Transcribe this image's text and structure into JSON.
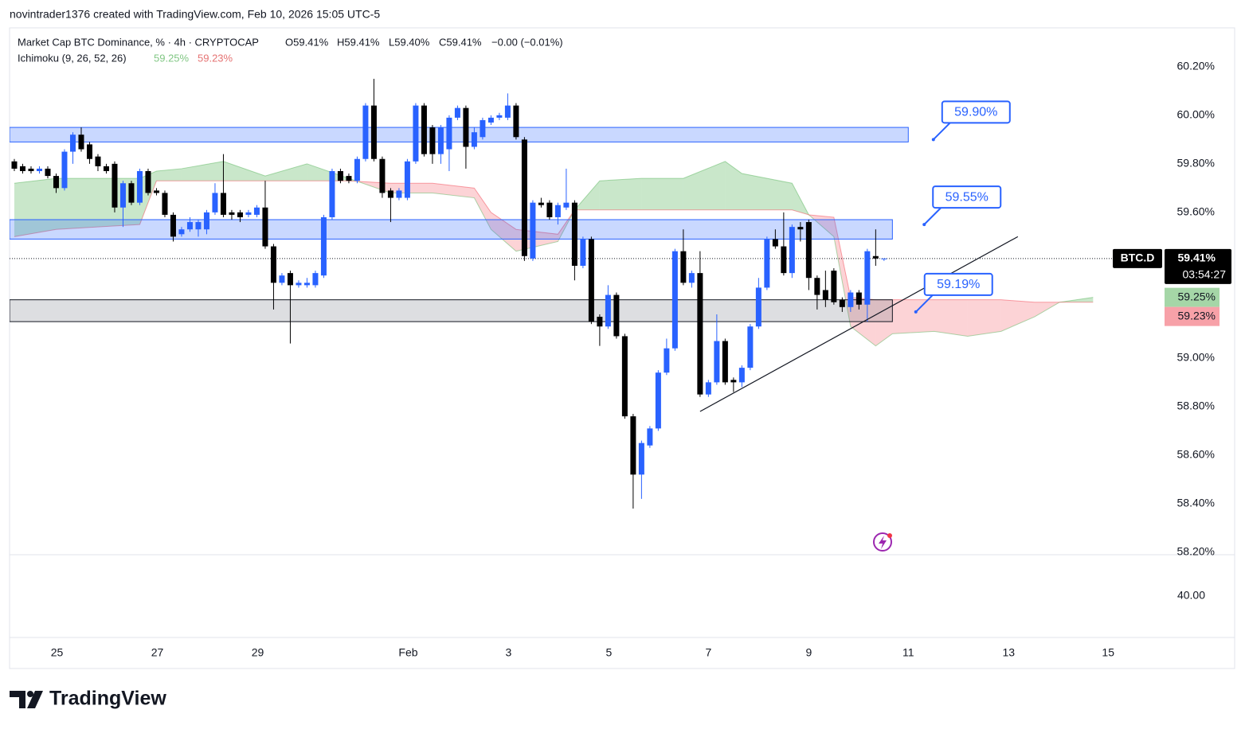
{
  "header": {
    "attribution": "novintrader1376 created with TradingView.com, Feb 10, 2026 15:05 UTC-5",
    "legend": {
      "symbol": "Market Cap BTC Dominance, % · 4h · CRYPTOCAP",
      "open": "O59.41%",
      "high": "H59.41%",
      "low": "L59.40%",
      "close": "C59.41%",
      "change": "−0.00 (−0.01%)"
    }
  },
  "chart_data": {
    "type": "candlestick",
    "up_color": "#2962ff",
    "down_color": "#000000",
    "grid": false,
    "categories": [
      null,
      null,
      null,
      null,
      null,
      null,
      null,
      null,
      null,
      null,
      null,
      null,
      null,
      null,
      null,
      null,
      null,
      null,
      null,
      null,
      null,
      null,
      null,
      null,
      null,
      null,
      null,
      null,
      null,
      null,
      null,
      null,
      null,
      null,
      null,
      null,
      null,
      null,
      null,
      null,
      null,
      null,
      null,
      null,
      null,
      null,
      null,
      null,
      null,
      null,
      null,
      null,
      null,
      null,
      null,
      null,
      null,
      null,
      null,
      null,
      null,
      null,
      null,
      null,
      null,
      null,
      null,
      null,
      null,
      null,
      null,
      null,
      null,
      null,
      null,
      null,
      null,
      null,
      null,
      null,
      null,
      null,
      null,
      null,
      null,
      null,
      null,
      null,
      null,
      null,
      null,
      null,
      null,
      null,
      null,
      null,
      null,
      null,
      null,
      null,
      null,
      null,
      null,
      null,
      null
    ],
    "open": [
      59.81,
      59.79,
      59.78,
      59.77,
      59.78,
      59.75,
      59.7,
      59.85,
      59.92,
      59.88,
      59.83,
      59.79,
      59.8,
      59.62,
      59.72,
      59.64,
      59.77,
      59.69,
      59.68,
      59.59,
      59.51,
      59.53,
      59.53,
      59.53,
      59.6,
      59.68,
      59.6,
      59.6,
      59.59,
      59.59,
      59.62,
      59.46,
      59.31,
      59.35,
      59.3,
      59.3,
      59.3,
      59.34,
      59.58,
      59.77,
      59.75,
      59.73,
      59.82,
      60.04,
      59.82,
      59.69,
      59.66,
      59.66,
      59.81,
      60.04,
      59.95,
      59.84,
      59.86,
      59.99,
      60.03,
      59.87,
      59.91,
      59.97,
      59.99,
      59.99,
      60.04,
      59.9,
      59.41,
      59.64,
      59.64,
      59.58,
      59.62,
      59.64,
      59.38,
      59.49,
      59.17,
      59.13,
      59.26,
      59.09,
      58.76,
      58.52,
      58.64,
      58.71,
      58.94,
      59.04,
      59.44,
      59.31,
      59.35,
      58.85,
      58.9,
      59.07,
      58.91,
      58.9,
      58.96,
      59.13,
      59.29,
      59.49,
      59.46,
      59.35,
      59.54,
      59.56,
      59.33,
      59.28,
      59.36,
      59.24,
      59.21,
      59.27,
      59.22,
      59.42,
      59.41
    ],
    "high": [
      59.82,
      59.8,
      59.79,
      59.79,
      59.79,
      59.76,
      59.86,
      59.93,
      59.95,
      59.89,
      59.84,
      59.8,
      59.81,
      59.73,
      59.73,
      59.78,
      59.78,
      59.7,
      59.69,
      59.6,
      59.54,
      59.58,
      59.57,
      59.61,
      59.72,
      59.84,
      59.61,
      59.61,
      59.61,
      59.63,
      59.73,
      59.47,
      59.35,
      59.36,
      59.32,
      59.33,
      59.36,
      59.59,
      59.78,
      59.78,
      59.76,
      59.83,
      60.05,
      60.15,
      59.83,
      59.7,
      59.7,
      59.82,
      60.05,
      60.05,
      59.96,
      59.96,
      60.0,
      60.04,
      60.04,
      59.95,
      59.99,
      60.0,
      60.01,
      60.09,
      60.05,
      59.91,
      59.65,
      59.66,
      59.65,
      59.64,
      59.78,
      59.65,
      59.5,
      59.5,
      59.18,
      59.3,
      59.27,
      59.1,
      58.77,
      58.66,
      58.72,
      58.95,
      59.08,
      59.45,
      59.53,
      59.36,
      59.44,
      58.91,
      59.18,
      59.08,
      58.92,
      58.97,
      59.14,
      59.33,
      59.5,
      59.53,
      59.6,
      59.55,
      59.56,
      59.57,
      59.34,
      59.36,
      59.37,
      59.25,
      59.28,
      59.28,
      59.45,
      59.53,
      59.41
    ],
    "low": [
      59.77,
      59.76,
      59.76,
      59.76,
      59.74,
      59.68,
      59.69,
      59.8,
      59.85,
      59.8,
      59.77,
      59.76,
      59.6,
      59.54,
      59.63,
      59.63,
      59.67,
      59.67,
      59.58,
      59.48,
      59.5,
      59.52,
      59.5,
      59.51,
      59.59,
      59.58,
      59.57,
      59.56,
      59.58,
      59.58,
      59.45,
      59.2,
      59.3,
      59.06,
      59.29,
      59.29,
      59.29,
      59.33,
      59.57,
      59.72,
      59.72,
      59.72,
      59.81,
      59.81,
      59.66,
      59.56,
      59.65,
      59.65,
      59.8,
      59.83,
      59.8,
      59.8,
      59.77,
      59.98,
      59.78,
      59.86,
      59.9,
      59.96,
      59.98,
      59.98,
      59.9,
      59.4,
      59.4,
      59.62,
      59.57,
      59.55,
      59.61,
      59.32,
      59.37,
      59.14,
      59.05,
      59.12,
      59.08,
      58.75,
      58.38,
      58.42,
      58.63,
      58.7,
      58.93,
      59.03,
      59.3,
      59.29,
      58.84,
      58.84,
      58.89,
      58.89,
      58.86,
      58.88,
      58.95,
      59.12,
      59.28,
      59.45,
      59.34,
      59.33,
      59.48,
      59.28,
      59.2,
      59.21,
      59.22,
      59.19,
      59.19,
      59.2,
      59.15,
      59.38,
      59.4
    ],
    "close": [
      59.78,
      59.77,
      59.77,
      59.78,
      59.75,
      59.7,
      59.85,
      59.92,
      59.86,
      59.82,
      59.79,
      59.77,
      59.62,
      59.72,
      59.64,
      59.77,
      59.68,
      59.68,
      59.59,
      59.5,
      59.53,
      59.56,
      59.56,
      59.6,
      59.68,
      59.59,
      59.59,
      59.58,
      59.6,
      59.62,
      59.46,
      59.31,
      59.34,
      59.3,
      59.31,
      59.31,
      59.35,
      59.58,
      59.77,
      59.73,
      59.73,
      59.82,
      60.04,
      59.82,
      59.68,
      59.66,
      59.69,
      59.81,
      60.04,
      59.84,
      59.84,
      59.95,
      59.99,
      60.03,
      59.87,
      59.93,
      59.98,
      59.99,
      60.0,
      60.04,
      59.91,
      59.42,
      59.64,
      59.63,
      59.58,
      59.63,
      59.64,
      59.38,
      59.49,
      59.15,
      59.13,
      59.26,
      59.09,
      58.76,
      58.52,
      58.65,
      58.71,
      58.94,
      59.04,
      59.44,
      59.31,
      59.35,
      58.85,
      58.9,
      59.07,
      58.9,
      58.9,
      58.96,
      59.13,
      59.29,
      59.49,
      59.46,
      59.35,
      59.54,
      59.53,
      59.33,
      59.26,
      59.24,
      59.23,
      59.21,
      59.27,
      59.22,
      59.44,
      59.41,
      59.41
    ],
    "xlim": [
      -0.57,
      136.4
    ],
    "ylim": [
      58.19,
      60.36
    ],
    "xticks": [
      {
        "value": 5.1,
        "label": "25"
      },
      {
        "value": 17.1,
        "label": "27"
      },
      {
        "value": 29.1,
        "label": "29"
      },
      {
        "value": 47.1,
        "label": "Feb"
      },
      {
        "value": 59.1,
        "label": "3"
      },
      {
        "value": 71.1,
        "label": "5"
      },
      {
        "value": 83,
        "label": "7"
      },
      {
        "value": 95,
        "label": "9"
      },
      {
        "value": 106.9,
        "label": "11"
      },
      {
        "value": 118.9,
        "label": "13"
      },
      {
        "value": 130.8,
        "label": "15"
      }
    ],
    "yticks": [
      {
        "value": 60.2,
        "label": "60.20%"
      },
      {
        "value": 60,
        "label": "60.00%"
      },
      {
        "value": 59.8,
        "label": "59.80%"
      },
      {
        "value": 59.6,
        "label": "59.60%"
      },
      {
        "value": 59,
        "label": "59.00%"
      },
      {
        "value": 58.8,
        "label": "58.80%"
      },
      {
        "value": 58.6,
        "label": "58.60%"
      },
      {
        "value": 58.4,
        "label": "58.40%"
      },
      {
        "value": 58.2,
        "label": "58.20%"
      }
    ],
    "ichimoku": {
      "name": "Ichimoku (9, 26, 52, 26)",
      "up_color": "#4caf50",
      "down_color": "#f23645",
      "x": [
        0,
        5,
        10,
        15,
        17,
        20,
        25,
        30,
        35,
        40,
        45,
        50,
        55,
        57,
        60,
        65,
        67,
        70,
        75,
        80,
        85,
        87,
        93,
        95,
        98,
        100,
        103,
        105,
        110,
        114,
        118,
        122,
        125,
        129
      ],
      "span_a": [
        59.72,
        59.74,
        59.74,
        59.74,
        59.77,
        59.78,
        59.81,
        59.75,
        59.8,
        59.74,
        59.68,
        59.68,
        59.66,
        59.53,
        59.44,
        59.48,
        59.61,
        59.73,
        59.74,
        59.74,
        59.81,
        59.76,
        59.72,
        59.59,
        59.5,
        59.13,
        59.05,
        59.1,
        59.11,
        59.09,
        59.11,
        59.17,
        59.23,
        59.25
      ],
      "span_b": [
        59.5,
        59.53,
        59.54,
        59.55,
        59.73,
        59.73,
        59.73,
        59.73,
        59.73,
        59.73,
        59.72,
        59.72,
        59.7,
        59.6,
        59.53,
        59.51,
        59.61,
        59.61,
        59.61,
        59.61,
        59.61,
        59.61,
        59.61,
        59.59,
        59.58,
        59.25,
        59.24,
        59.24,
        59.24,
        59.24,
        59.24,
        59.23,
        59.23,
        59.23
      ],
      "legend_values": [
        {
          "value": 59.25,
          "label": "59.25%"
        },
        {
          "value": 59.23,
          "label": "59.23%"
        }
      ]
    },
    "zones": [
      {
        "from": 59.89,
        "to": 59.95,
        "end": 106.9,
        "color": "#2962ff"
      },
      {
        "from": 59.49,
        "to": 59.57,
        "end": 105,
        "color": "#2962ff"
      },
      {
        "from": 59.15,
        "to": 59.24,
        "end": 105,
        "color": "#787b86"
      }
    ],
    "trendline": {
      "x": [
        82,
        120
      ],
      "values": [
        58.78,
        59.5
      ]
    },
    "callouts": [
      {
        "value": 59.9,
        "label": "59.90%",
        "x": 109.9
      },
      {
        "value": 59.55,
        "label": "59.55%",
        "x": 108.8
      },
      {
        "value": 59.19,
        "label": "59.19%",
        "x": 107.8
      }
    ],
    "price": {
      "symbol": "BTC.D",
      "value": 59.41,
      "label": "59.41%",
      "countdown": "03:54:27"
    },
    "lower_pane": {
      "yticks": [
        {
          "value": 40,
          "label": "40.00"
        }
      ]
    }
  },
  "footer": {
    "brand": "TradingView"
  }
}
